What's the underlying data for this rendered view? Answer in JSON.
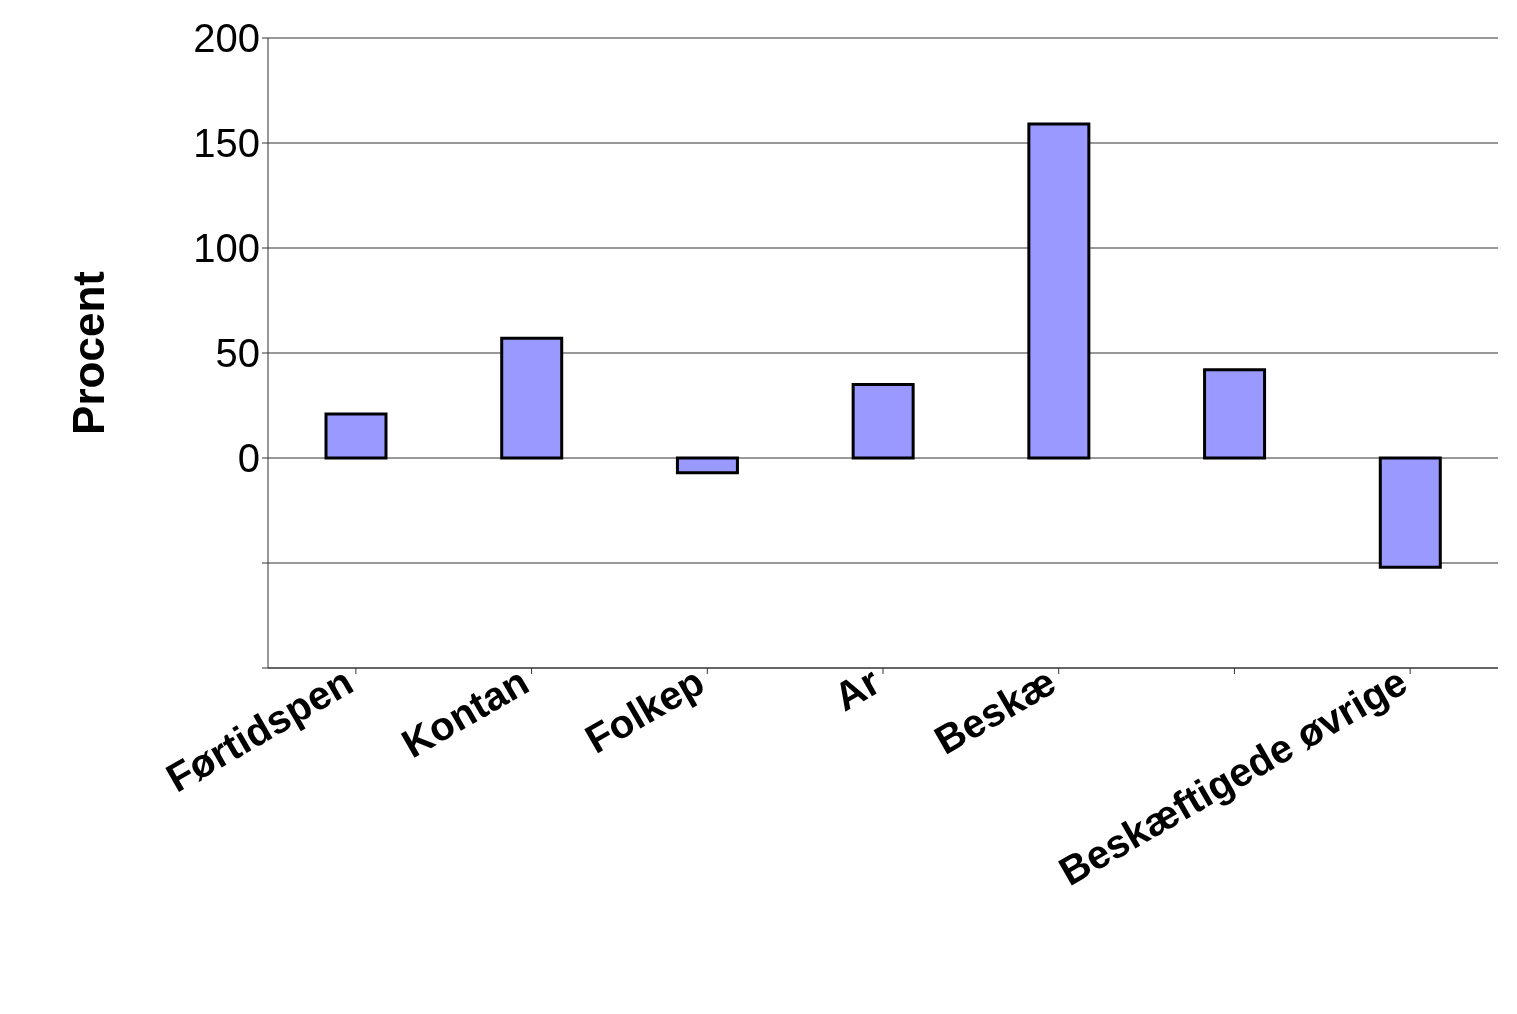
{
  "chart_data": {
    "type": "bar",
    "ylabel": "Procent",
    "categories": [
      "Førtidspen",
      "Kontan",
      "Folkep",
      "Ar",
      "Beskæ",
      null,
      "Beskæftigede øvrige"
    ],
    "values": [
      21,
      57,
      -7,
      35,
      159,
      42,
      -52
    ],
    "color": "#9999ff",
    "ylim": [
      -100,
      200
    ],
    "yticks": [
      {
        "value": -100,
        "label": null
      },
      {
        "value": -50,
        "label": null
      },
      0,
      50,
      100,
      150,
      200
    ],
    "grid": "y"
  }
}
